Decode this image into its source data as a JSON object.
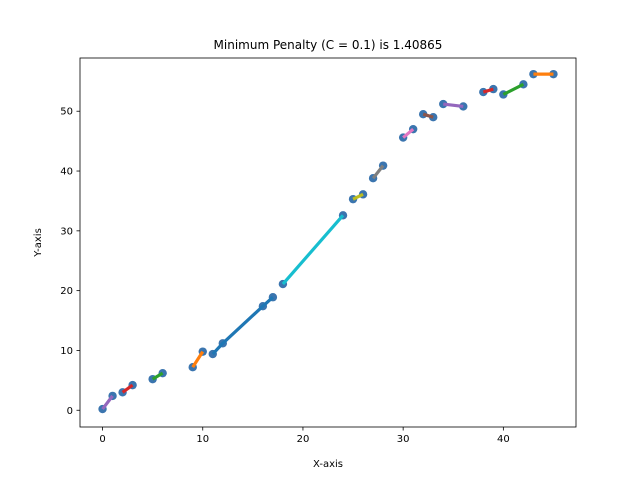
{
  "chart_data": {
    "type": "scatter",
    "title": "Minimum Penalty (C = 0.1) is 1.40865",
    "xlabel": "X-axis",
    "ylabel": "Y-axis",
    "xlim": [
      -2.25,
      47.25
    ],
    "ylim": [
      -2.8,
      58.9
    ],
    "xticks": [
      0,
      10,
      20,
      30,
      40
    ],
    "yticks": [
      0,
      10,
      20,
      30,
      40,
      50
    ],
    "grid": false,
    "legend": "none",
    "point_color": "#3b75af",
    "points": [
      {
        "x": 0,
        "y": 0.2
      },
      {
        "x": 1,
        "y": 2.4
      },
      {
        "x": 2,
        "y": 3.0
      },
      {
        "x": 3,
        "y": 4.2
      },
      {
        "x": 5,
        "y": 5.2
      },
      {
        "x": 6,
        "y": 6.2
      },
      {
        "x": 9,
        "y": 7.2
      },
      {
        "x": 10,
        "y": 9.8
      },
      {
        "x": 11,
        "y": 9.4
      },
      {
        "x": 12,
        "y": 11.2
      },
      {
        "x": 16,
        "y": 17.4
      },
      {
        "x": 17,
        "y": 18.9
      },
      {
        "x": 18,
        "y": 21.1
      },
      {
        "x": 24,
        "y": 32.6
      },
      {
        "x": 25,
        "y": 35.3
      },
      {
        "x": 26,
        "y": 36.1
      },
      {
        "x": 27,
        "y": 38.8
      },
      {
        "x": 28,
        "y": 40.9
      },
      {
        "x": 30,
        "y": 45.6
      },
      {
        "x": 31,
        "y": 47.0
      },
      {
        "x": 32,
        "y": 49.5
      },
      {
        "x": 33,
        "y": 49.0
      },
      {
        "x": 34,
        "y": 51.2
      },
      {
        "x": 36,
        "y": 50.8
      },
      {
        "x": 38,
        "y": 53.2
      },
      {
        "x": 39,
        "y": 53.7
      },
      {
        "x": 40,
        "y": 52.8
      },
      {
        "x": 42,
        "y": 54.5
      },
      {
        "x": 43,
        "y": 56.2
      },
      {
        "x": 45,
        "y": 56.2
      }
    ],
    "segments": [
      {
        "x": [
          0,
          1
        ],
        "y": [
          0.2,
          2.4
        ],
        "color": "#9467bd"
      },
      {
        "x": [
          2,
          3
        ],
        "y": [
          3.0,
          4.2
        ],
        "color": "#d62728"
      },
      {
        "x": [
          5,
          6
        ],
        "y": [
          5.2,
          6.2
        ],
        "color": "#2ca02c"
      },
      {
        "x": [
          9,
          10
        ],
        "y": [
          7.2,
          9.8
        ],
        "color": "#ff7f0e"
      },
      {
        "x": [
          11,
          12,
          16,
          17
        ],
        "y": [
          9.4,
          11.2,
          17.4,
          18.9
        ],
        "color": "#1f77b4"
      },
      {
        "x": [
          18,
          24
        ],
        "y": [
          21.1,
          32.6
        ],
        "color": "#17becf"
      },
      {
        "x": [
          25,
          26
        ],
        "y": [
          35.3,
          36.1
        ],
        "color": "#bcbd22"
      },
      {
        "x": [
          27,
          28
        ],
        "y": [
          38.8,
          40.9
        ],
        "color": "#7f7f7f"
      },
      {
        "x": [
          30,
          31
        ],
        "y": [
          45.6,
          47.0
        ],
        "color": "#e377c2"
      },
      {
        "x": [
          32,
          33
        ],
        "y": [
          49.5,
          49.0
        ],
        "color": "#8c564b"
      },
      {
        "x": [
          34,
          36
        ],
        "y": [
          51.2,
          50.8
        ],
        "color": "#9467bd"
      },
      {
        "x": [
          38,
          39
        ],
        "y": [
          53.2,
          53.7
        ],
        "color": "#d62728"
      },
      {
        "x": [
          40,
          42
        ],
        "y": [
          52.8,
          54.5
        ],
        "color": "#2ca02c"
      },
      {
        "x": [
          43,
          45
        ],
        "y": [
          56.2,
          56.2
        ],
        "color": "#ff7f0e"
      }
    ]
  }
}
